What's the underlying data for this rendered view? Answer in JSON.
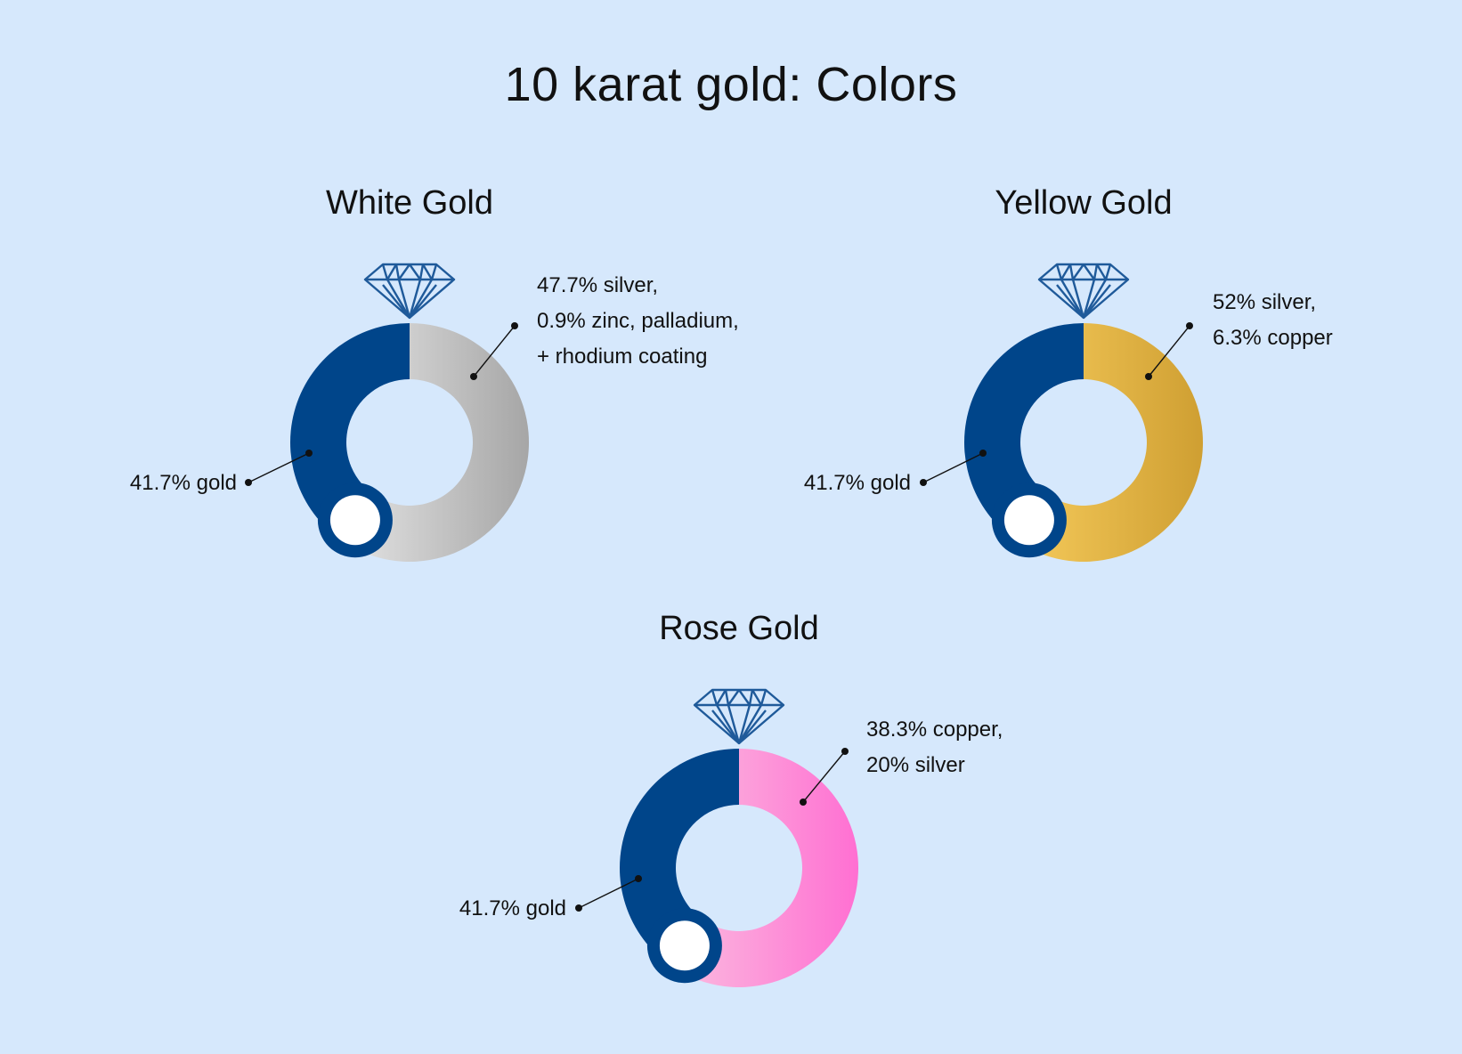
{
  "title": "10 karat gold: Colors",
  "colors": {
    "background": "#d6e8fc",
    "gold_segment": "#00458a",
    "diamond_stroke": "#1f5a9a"
  },
  "chart_data": [
    {
      "type": "pie",
      "title": "White Gold",
      "slices": [
        {
          "label_lines": [
            "41.7% gold"
          ],
          "value": 41.7,
          "color": "#00458a"
        },
        {
          "label_lines": [
            "47.7% silver,",
            "0.9% zinc, palladium,",
            "+ rhodium coating"
          ],
          "value": 58.3,
          "color_stops": [
            "#e2e2e2",
            "#a6a6a6"
          ]
        }
      ]
    },
    {
      "type": "pie",
      "title": "Yellow Gold",
      "slices": [
        {
          "label_lines": [
            "41.7% gold"
          ],
          "value": 41.7,
          "color": "#00458a"
        },
        {
          "label_lines": [
            "52% silver,",
            "6.3% copper"
          ],
          "value": 58.3,
          "color_stops": [
            "#f4c95a",
            "#cf9f32"
          ]
        }
      ]
    },
    {
      "type": "pie",
      "title": "Rose Gold",
      "slices": [
        {
          "label_lines": [
            "41.7% gold"
          ],
          "value": 41.7,
          "color": "#00458a"
        },
        {
          "label_lines": [
            "38.3% copper,",
            "20% silver"
          ],
          "value": 58.3,
          "color_stops": [
            "#fbbadf",
            "#ff6fd2"
          ]
        }
      ]
    }
  ]
}
